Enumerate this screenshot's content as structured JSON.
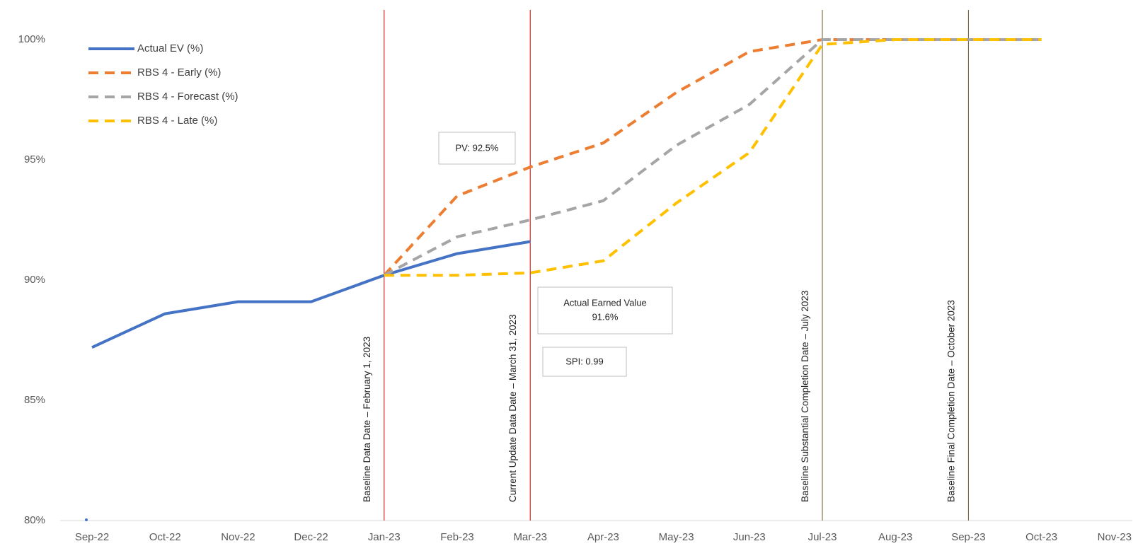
{
  "chart_data": {
    "type": "line",
    "x": [
      "Sep-22",
      "Oct-22",
      "Nov-22",
      "Dec-22",
      "Jan-23",
      "Feb-23",
      "Mar-23",
      "Apr-23",
      "May-23",
      "Jun-23",
      "Jul-23",
      "Aug-23",
      "Sep-23",
      "Oct-23",
      "Nov-23"
    ],
    "y_ticks": [
      "80%",
      "85%",
      "90%",
      "95%",
      "100%"
    ],
    "ylim": [
      80,
      100
    ],
    "grid": false,
    "legend_position": "top-left",
    "series": [
      {
        "name": "Actual EV (%)",
        "color": "#4472C4",
        "dash": "solid",
        "values": [
          87.2,
          88.6,
          89.1,
          89.1,
          90.2,
          91.1,
          91.6,
          null,
          null,
          null,
          null,
          null,
          null,
          null,
          null
        ]
      },
      {
        "name": "RBS 4 - Early (%)",
        "color": "#ED7D31",
        "dash": "dashed",
        "values": [
          null,
          null,
          null,
          null,
          90.2,
          93.5,
          94.7,
          95.7,
          97.8,
          99.5,
          100,
          100,
          100,
          100,
          null
        ]
      },
      {
        "name": "RBS 4 - Forecast (%)",
        "color": "#A5A5A5",
        "dash": "dashed",
        "values": [
          null,
          null,
          null,
          null,
          90.2,
          91.8,
          92.5,
          93.3,
          95.6,
          97.3,
          100,
          100,
          100,
          100,
          null
        ]
      },
      {
        "name": "RBS 4 - Late (%)",
        "color": "#FFC000",
        "dash": "dashed",
        "values": [
          null,
          null,
          null,
          null,
          90.2,
          90.2,
          90.3,
          90.8,
          93.2,
          95.3,
          99.8,
          100,
          100,
          100,
          null
        ]
      }
    ],
    "vertical_markers": [
      {
        "at": "Jan-23",
        "label": "Baseline Data Date – February 1, 2023",
        "color": "#C00000"
      },
      {
        "at": "Mar-23",
        "label": "Current Update Data Date – March 31, 2023",
        "color": "#C00000"
      },
      {
        "at": "Jul-23",
        "label": "Baseline Substantial Completion Date – July 2023",
        "color": "#6B5A2A"
      },
      {
        "at": "Sep-23",
        "label": "Baseline Final Completion Date – October 2023",
        "color": "#6B5A2A"
      }
    ],
    "annotations": {
      "pv": "PV: 92.5%",
      "ev_line1": "Actual Earned Value",
      "ev_line2": "91.6%",
      "spi": "SPI: 0.99"
    },
    "stray_point": {
      "x": "Sep-22",
      "y": 80
    }
  }
}
